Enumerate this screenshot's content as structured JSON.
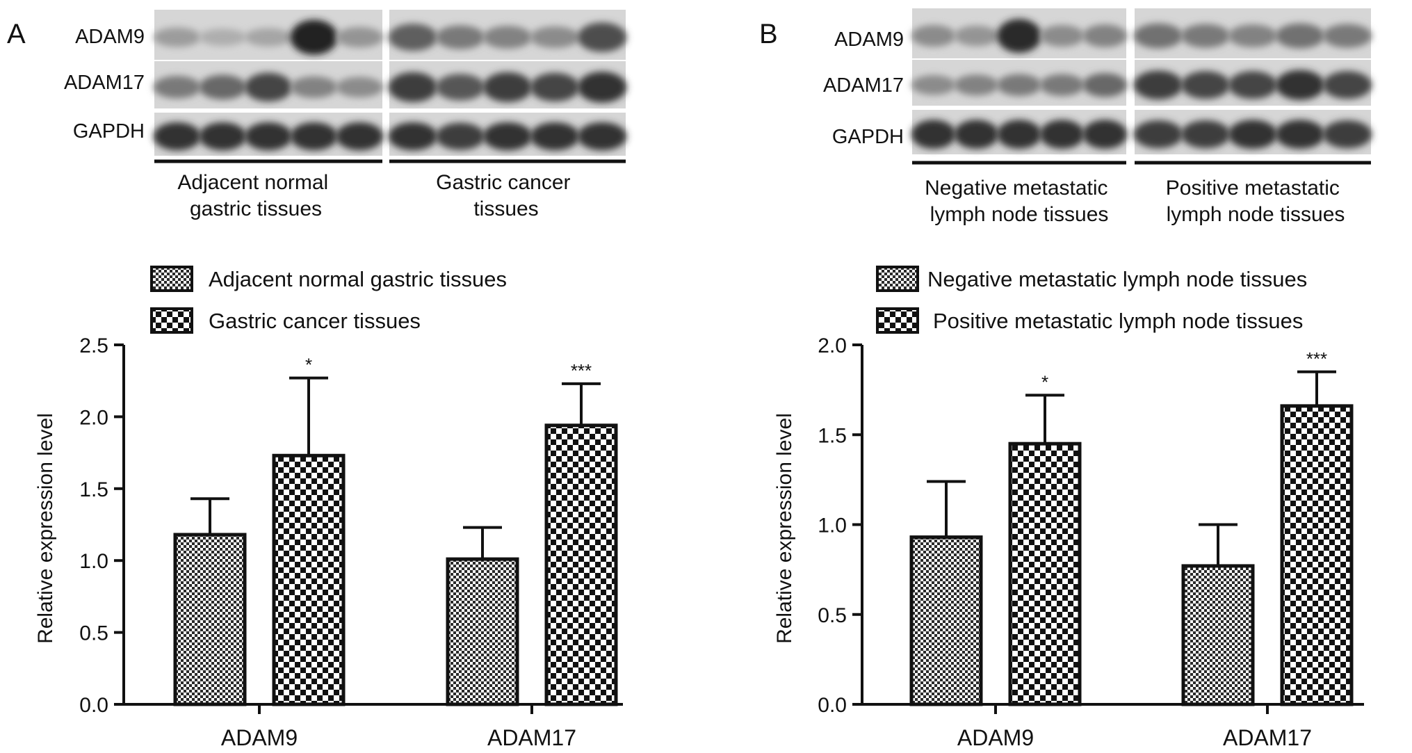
{
  "panels": [
    {
      "letter": "A",
      "blot": {
        "rows": [
          {
            "label": "ADAM9",
            "left_intensity": [
              0.25,
              0.15,
              0.2,
              0.95,
              0.3
            ],
            "right_intensity": [
              0.6,
              0.45,
              0.4,
              0.35,
              0.7
            ]
          },
          {
            "label": "ADAM17",
            "left_intensity": [
              0.45,
              0.55,
              0.75,
              0.4,
              0.35
            ],
            "right_intensity": [
              0.8,
              0.65,
              0.8,
              0.75,
              0.85
            ]
          },
          {
            "label": "GAPDH",
            "left_intensity": [
              0.85,
              0.85,
              0.85,
              0.85,
              0.85
            ],
            "right_intensity": [
              0.85,
              0.8,
              0.85,
              0.85,
              0.85
            ]
          }
        ],
        "group_labels": [
          [
            "Adjacent normal",
            "gastric tissues"
          ],
          [
            "Gastric cancer",
            "tissues"
          ]
        ]
      },
      "chart_data": {
        "type": "bar",
        "categories": [
          "ADAM9",
          "ADAM17"
        ],
        "series": [
          {
            "name": "Adjacent normal gastric tissues",
            "values": [
              1.18,
              1.01
            ],
            "errors": [
              0.25,
              0.22
            ],
            "pattern": "fine"
          },
          {
            "name": "Gastric cancer tissues",
            "values": [
              1.73,
              1.94
            ],
            "errors": [
              0.54,
              0.29
            ],
            "pattern": "coarse"
          }
        ],
        "significance": [
          [
            "",
            "*"
          ],
          [
            "",
            "***"
          ]
        ],
        "ylabel": "Relative expression level",
        "ylim": [
          0,
          2.5
        ],
        "yticks": [
          "0.0",
          "0.5",
          "1.0",
          "1.5",
          "2.0",
          "2.5"
        ],
        "grid": false,
        "legend_position": "top"
      }
    },
    {
      "letter": "B",
      "blot": {
        "rows": [
          {
            "label": "ADAM9",
            "left_intensity": [
              0.35,
              0.3,
              0.9,
              0.35,
              0.4
            ],
            "right_intensity": [
              0.5,
              0.45,
              0.4,
              0.5,
              0.45
            ]
          },
          {
            "label": "ADAM17",
            "left_intensity": [
              0.35,
              0.4,
              0.45,
              0.45,
              0.55
            ],
            "right_intensity": [
              0.8,
              0.75,
              0.75,
              0.85,
              0.75
            ]
          },
          {
            "label": "GAPDH",
            "left_intensity": [
              0.85,
              0.85,
              0.85,
              0.85,
              0.85
            ],
            "right_intensity": [
              0.8,
              0.8,
              0.85,
              0.85,
              0.8
            ]
          }
        ],
        "group_labels": [
          [
            "Negative metastatic",
            "lymph node tissues"
          ],
          [
            "Positive metastatic",
            "lymph node tissues"
          ]
        ]
      },
      "chart_data": {
        "type": "bar",
        "categories": [
          "ADAM9",
          "ADAM17"
        ],
        "series": [
          {
            "name": "Negative metastatic lymph node tissues",
            "values": [
              0.93,
              0.77
            ],
            "errors": [
              0.31,
              0.23
            ],
            "pattern": "fine"
          },
          {
            "name": "Positive metastatic lymph node tissues",
            "values": [
              1.45,
              1.66
            ],
            "errors": [
              0.27,
              0.19
            ],
            "pattern": "coarse"
          }
        ],
        "significance": [
          [
            "",
            "*"
          ],
          [
            "",
            "***"
          ]
        ],
        "ylabel": "Relative expression level",
        "ylim": [
          0,
          2.0
        ],
        "yticks": [
          "0.0",
          "0.5",
          "1.0",
          "1.5",
          "2.0"
        ],
        "grid": false,
        "legend_position": "top"
      }
    }
  ]
}
